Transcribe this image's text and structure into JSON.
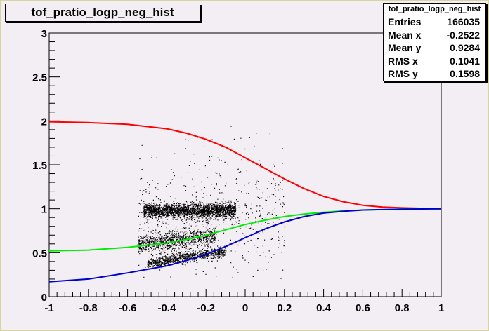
{
  "title": "tof_pratio_logp_neg_hist",
  "stats": {
    "name": "tof_pratio_logp_neg_hist",
    "rows": [
      {
        "label": "Entries",
        "value": "166035"
      },
      {
        "label": "Mean x",
        "value": "-0.2522"
      },
      {
        "label": "Mean y",
        "value": "0.9284"
      },
      {
        "label": "RMS x",
        "value": "0.1041"
      },
      {
        "label": "RMS y",
        "value": "0.1598"
      }
    ]
  },
  "chart_data": {
    "type": "scatter",
    "title": "tof_pratio_logp_neg_hist",
    "xlabel": "",
    "ylabel": "",
    "xlim": [
      -1,
      1
    ],
    "ylim": [
      0,
      3
    ],
    "x_ticks": [
      "-1",
      "-0.8",
      "-0.6",
      "-0.4",
      "-0.2",
      "0",
      "0.2",
      "0.4",
      "0.6",
      "0.8",
      "1"
    ],
    "y_ticks": [
      "0",
      "0.5",
      "1",
      "1.5",
      "2",
      "2.5",
      "3"
    ],
    "grid": false,
    "legend": "top-right",
    "histogram": {
      "entries": 166035,
      "mean_x": -0.2522,
      "mean_y": 0.9284,
      "rms_x": 0.1041,
      "rms_y": 0.1598,
      "clusters": [
        {
          "x_range": [
            -0.52,
            -0.05
          ],
          "y_center": 0.98,
          "y_spread": 0.04,
          "density": "high"
        },
        {
          "x_range": [
            -0.55,
            -0.15
          ],
          "y_center": 0.6,
          "y_spread": 0.05,
          "density": "medium"
        },
        {
          "x_range": [
            -0.5,
            -0.1
          ],
          "y_center": 0.38,
          "y_spread": 0.03,
          "density": "medium"
        },
        {
          "x_range": [
            -0.55,
            0.2
          ],
          "y_center": 0.9,
          "y_spread": 0.35,
          "density": "sparse"
        }
      ]
    },
    "series": [
      {
        "color": "#ff0000",
        "x": [
          -1,
          -0.8,
          -0.6,
          -0.4,
          -0.3,
          -0.2,
          -0.1,
          0,
          0.1,
          0.2,
          0.3,
          0.4,
          0.5,
          0.6,
          0.7,
          0.8,
          1
        ],
        "y": [
          1.99,
          1.98,
          1.96,
          1.91,
          1.86,
          1.79,
          1.7,
          1.58,
          1.46,
          1.34,
          1.23,
          1.14,
          1.08,
          1.04,
          1.02,
          1.01,
          1.0
        ]
      },
      {
        "color": "#00ee00",
        "x": [
          -1,
          -0.8,
          -0.6,
          -0.4,
          -0.3,
          -0.2,
          -0.1,
          0,
          0.1,
          0.2,
          0.3,
          0.4,
          0.5,
          0.6,
          0.7,
          0.8,
          1
        ],
        "y": [
          0.52,
          0.53,
          0.56,
          0.61,
          0.65,
          0.7,
          0.76,
          0.82,
          0.87,
          0.91,
          0.94,
          0.96,
          0.975,
          0.985,
          0.99,
          0.995,
          1.0
        ]
      },
      {
        "color": "#0000cc",
        "x": [
          -1,
          -0.8,
          -0.6,
          -0.4,
          -0.3,
          -0.2,
          -0.1,
          0,
          0.1,
          0.2,
          0.3,
          0.4,
          0.5,
          0.6,
          0.7,
          0.8,
          1
        ],
        "y": [
          0.17,
          0.2,
          0.27,
          0.35,
          0.41,
          0.48,
          0.57,
          0.67,
          0.77,
          0.85,
          0.91,
          0.95,
          0.97,
          0.985,
          0.99,
          0.995,
          1.0
        ]
      }
    ]
  }
}
